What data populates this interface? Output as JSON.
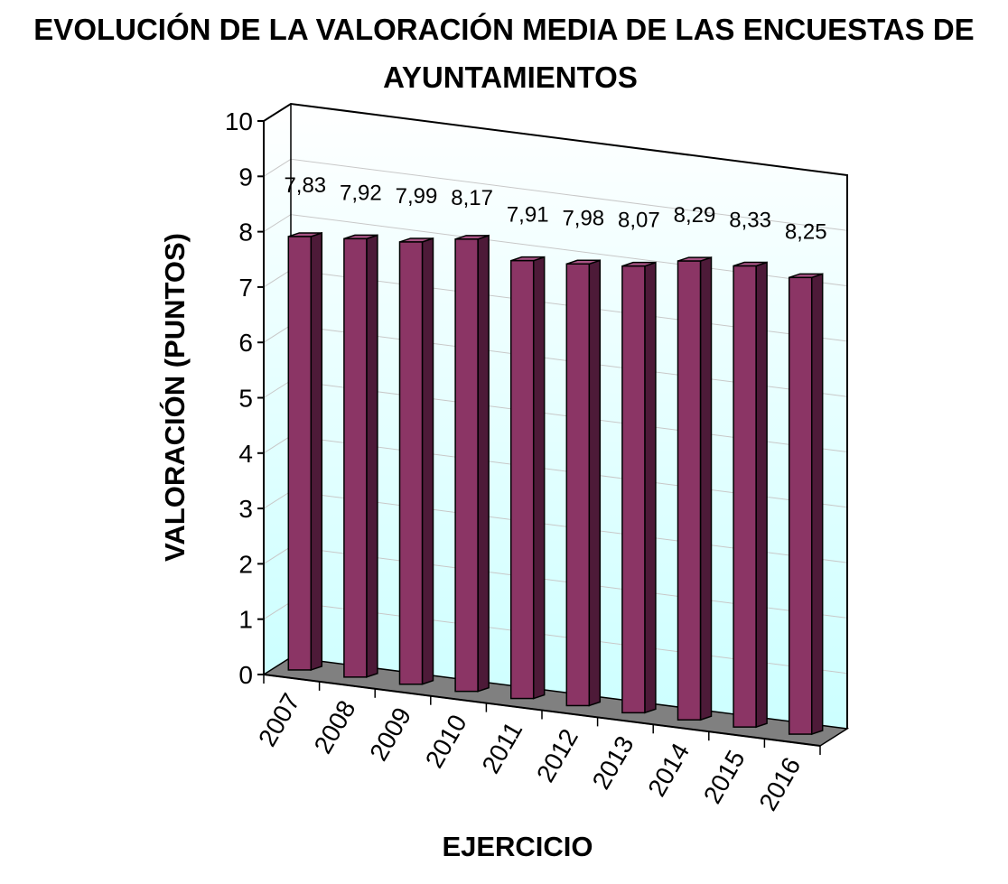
{
  "chart_data": {
    "type": "bar",
    "title_line1": "EVOLUCIÓN DE LA VALORACIÓN MEDIA DE LAS ENCUESTAS DE",
    "title_line2": "AYUNTAMIENTOS",
    "xlabel": "EJERCICIO",
    "ylabel": "VALORACIÓN (PUNTOS)",
    "ylim": [
      0,
      10
    ],
    "yticks": [
      "0",
      "1",
      "2",
      "3",
      "4",
      "5",
      "6",
      "7",
      "8",
      "9",
      "10"
    ],
    "categories": [
      "2007",
      "2008",
      "2009",
      "2010",
      "2011",
      "2012",
      "2013",
      "2014",
      "2015",
      "2016"
    ],
    "values": [
      7.83,
      7.92,
      7.99,
      8.17,
      7.91,
      7.98,
      8.07,
      8.29,
      8.33,
      8.25
    ],
    "value_labels": [
      "7,83",
      "7,92",
      "7,99",
      "8,17",
      "7,91",
      "7,98",
      "8,07",
      "8,29",
      "8,33",
      "8,25"
    ],
    "grid": true,
    "legend": "none",
    "bar_color": "#8b3565",
    "floor_color": "#808080",
    "wall_gradient": [
      "#ffffff",
      "#ccffff"
    ]
  }
}
